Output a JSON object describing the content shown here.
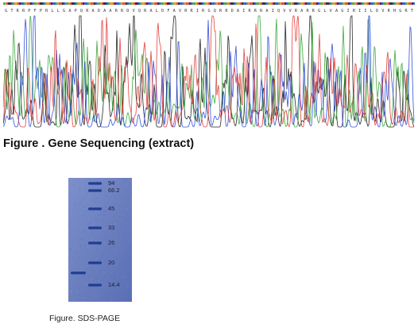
{
  "figure_sequencing": {
    "caption": "Figure . Gene Sequencing (extract)",
    "sequence_letters": "GTRRPFPRLLGAPQRADAARRDVQRALDFAVRRIRGQRRDAIRRRAIQVVRARRGLVAGIRIILDVRHGRT",
    "trace_colors": {
      "A": "#2ca02c",
      "C": "#1f3fd6",
      "G": "#111111",
      "T": "#e0302a"
    }
  },
  "figure_sds_page": {
    "caption": "Figure. SDS-PAGE",
    "marker_labels": [
      "94",
      "66.2",
      "45",
      "33",
      "26",
      "20",
      "14.4"
    ],
    "gel_color": "#6b7fbf",
    "band_color": "#1d3a8f"
  }
}
